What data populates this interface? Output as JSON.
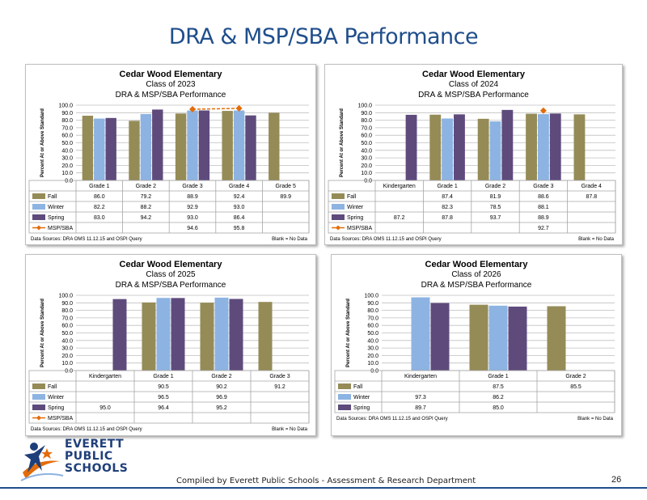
{
  "page": {
    "title": "DRA & MSP/SBA Performance",
    "footer": "Compiled  by Everett Public Schools - Assessment & Research Department",
    "page_number": "26",
    "logo": [
      "EVERETT",
      "PUBLIC",
      "SCHOOLS"
    ]
  },
  "colors": {
    "fall": "#958b57",
    "winter": "#8db3e2",
    "spring": "#5e4b7c",
    "msp": "#e36c09",
    "grid": "#bfbfbf"
  },
  "chart_data": [
    {
      "type": "bar",
      "title": "Cedar Wood Elementary",
      "subtitle1": "Class of 2023",
      "subtitle2": "DRA & MSP/SBA Performance",
      "ylabel": "Percent At or Above Standard",
      "ylim": [
        0,
        100
      ],
      "yticks": [
        "100.0",
        "90.0",
        "80.0",
        "70.0",
        "60.0",
        "50.0",
        "40.0",
        "30.0",
        "20.0",
        "10.0",
        "0.0"
      ],
      "categories": [
        "Grade 1",
        "Grade 2",
        "Grade 3",
        "Grade 4",
        "Grade 5"
      ],
      "series": [
        {
          "name": "Fall",
          "values": [
            86.0,
            79.2,
            88.9,
            92.4,
            89.9
          ],
          "labels": [
            "86.0",
            "79.2",
            "88.9",
            "92.4",
            "89.9"
          ]
        },
        {
          "name": "Winter",
          "values": [
            82.2,
            88.2,
            92.9,
            93.0,
            null
          ],
          "labels": [
            "82.2",
            "88.2",
            "92.9",
            "93.0",
            ""
          ]
        },
        {
          "name": "Spring",
          "values": [
            83.0,
            94.2,
            93.0,
            86.4,
            null
          ],
          "labels": [
            "83.0",
            "94.2",
            "93.0",
            "86.4",
            ""
          ]
        },
        {
          "name": "MSP/SBA",
          "kind": "line",
          "values": [
            null,
            null,
            94.6,
            95.8,
            null
          ],
          "labels": [
            "",
            "",
            "94.6",
            "95.8",
            ""
          ]
        }
      ],
      "source": "Data Sources: DRA OMS 11.12.15 and OSPI Query",
      "note": "Blank = No Data"
    },
    {
      "type": "bar",
      "title": "Cedar Wood Elementary",
      "subtitle1": "Class of 2024",
      "subtitle2": "DRA & MSP/SBA Performance",
      "ylabel": "Percent At or Above Standard",
      "ylim": [
        0,
        100
      ],
      "yticks": [
        "100.0",
        "90.0",
        "80.0",
        "70.0",
        "60.0",
        "50.0",
        "40.0",
        "30.0",
        "20.0",
        "10.0",
        "0.0"
      ],
      "categories": [
        "Kindergarten",
        "Grade 1",
        "Grade 2",
        "Grade 3",
        "Grade 4"
      ],
      "series": [
        {
          "name": "Fall",
          "values": [
            null,
            87.4,
            81.9,
            88.6,
            87.8
          ],
          "labels": [
            "",
            "87.4",
            "81.9",
            "88.6",
            "87.8"
          ]
        },
        {
          "name": "Winter",
          "values": [
            null,
            82.3,
            78.5,
            88.1,
            null
          ],
          "labels": [
            "",
            "82.3",
            "78.5",
            "88.1",
            ""
          ]
        },
        {
          "name": "Spring",
          "values": [
            87.2,
            87.8,
            93.7,
            88.9,
            null
          ],
          "labels": [
            "87.2",
            "87.8",
            "93.7",
            "88.9",
            ""
          ]
        },
        {
          "name": "MSP/SBA",
          "kind": "line",
          "values": [
            null,
            null,
            null,
            92.7,
            null
          ],
          "labels": [
            "",
            "",
            "",
            "92.7",
            ""
          ]
        }
      ],
      "source": "Data Sources: DRA OMS 11.12.15 and OSPI Query",
      "note": "Blank = No Data"
    },
    {
      "type": "bar",
      "title": "Cedar Wood Elementary",
      "subtitle1": "Class of 2025",
      "subtitle2": "DRA & MSP/SBA Performance",
      "ylabel": "Percent At or Above Standard",
      "ylim": [
        0,
        100
      ],
      "yticks": [
        "100.0",
        "90.0",
        "80.0",
        "70.0",
        "60.0",
        "50.0",
        "40.0",
        "30.0",
        "20.0",
        "10.0",
        "0.0"
      ],
      "categories": [
        "Kindergarten",
        "Grade 1",
        "Grade 2",
        "Grade 3"
      ],
      "series": [
        {
          "name": "Fall",
          "values": [
            null,
            90.5,
            90.2,
            91.2
          ],
          "labels": [
            "",
            "90.5",
            "90.2",
            "91.2"
          ]
        },
        {
          "name": "Winter",
          "values": [
            null,
            96.5,
            96.9,
            null
          ],
          "labels": [
            "",
            "96.5",
            "96.9",
            ""
          ]
        },
        {
          "name": "Spring",
          "values": [
            95.0,
            96.4,
            95.2,
            null
          ],
          "labels": [
            "95.0",
            "96.4",
            "95.2",
            ""
          ]
        },
        {
          "name": "MSP/SBA",
          "kind": "line",
          "values": [
            null,
            null,
            null,
            null
          ],
          "labels": [
            "",
            "",
            "",
            ""
          ]
        }
      ],
      "source": "Data Sources: DRA OMS 11.12.15 and OSPI Query",
      "note": "Blank = No Data"
    },
    {
      "type": "bar",
      "title": "Cedar Wood Elementary",
      "subtitle1": "Class of 2026",
      "subtitle2": "DRA & MSP/SBA Performance",
      "ylabel": "Percent At or Above Standard",
      "ylim": [
        0,
        100
      ],
      "yticks": [
        "100.0",
        "90.0",
        "80.0",
        "70.0",
        "60.0",
        "50.0",
        "40.0",
        "30.0",
        "20.0",
        "10.0",
        "0.0"
      ],
      "categories": [
        "Kindergarten",
        "Grade 1",
        "Grade 2"
      ],
      "series": [
        {
          "name": "Fall",
          "values": [
            null,
            87.5,
            85.5
          ],
          "labels": [
            "",
            "87.5",
            "85.5"
          ]
        },
        {
          "name": "Winter",
          "values": [
            97.3,
            86.2,
            null
          ],
          "labels": [
            "97.3",
            "86.2",
            ""
          ]
        },
        {
          "name": "Spring",
          "values": [
            89.7,
            85.0,
            null
          ],
          "labels": [
            "89.7",
            "85.0",
            ""
          ]
        }
      ],
      "source": "Data Sources: DRA OMS 11.12.15 and OSPI Query",
      "note": "Blank = No Data"
    }
  ]
}
